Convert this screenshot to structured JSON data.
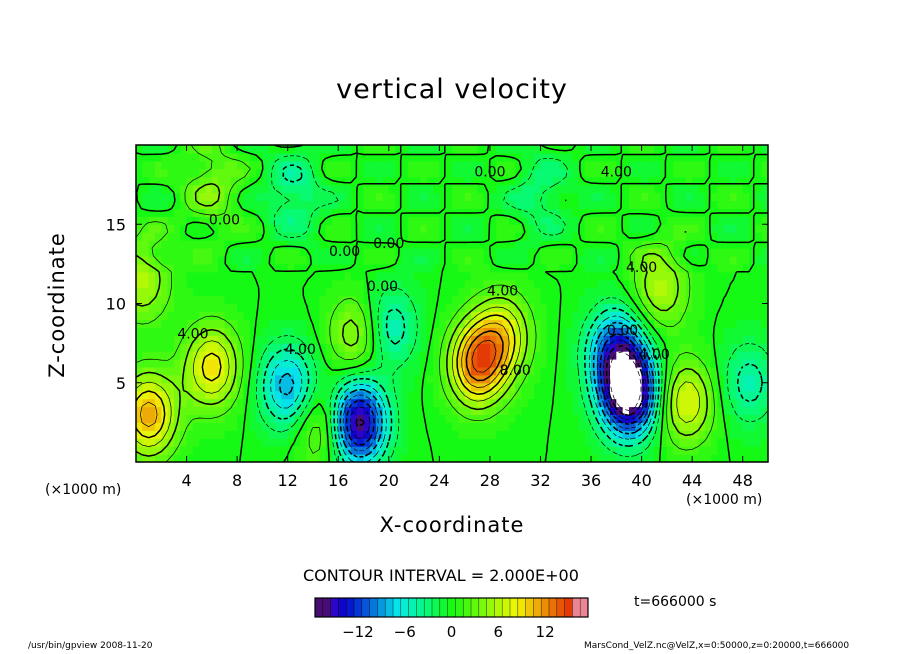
{
  "chart_data": {
    "type": "heatmap",
    "title": "vertical velocity",
    "xlabel": "X-coordinate",
    "ylabel": "Z-coordinate",
    "x_unit": "(×1000 m)",
    "xlim": [
      0,
      50
    ],
    "ylim": [
      0,
      20
    ],
    "x_ticks": [
      "4",
      "8",
      "12",
      "16",
      "20",
      "24",
      "28",
      "32",
      "36",
      "40",
      "44",
      "48"
    ],
    "y_ticks": [
      "5",
      "10",
      "15"
    ],
    "color_range": [
      -17,
      17
    ],
    "colorbar_ticks": [
      "−12",
      "−6",
      "0",
      "6",
      "12"
    ],
    "colorbar_values": [
      -12,
      -6,
      0,
      6,
      12
    ],
    "contour_interval_text": "CONTOUR INTERVAL = 2.000E+00",
    "contour_labels": [
      "4.00",
      "4.00",
      "4.00",
      "4.00",
      "8.00",
      "0.00",
      "0.00",
      "0.00",
      "0.00",
      "0.00",
      "0.00",
      "4.00",
      "4.00"
    ],
    "features": [
      {
        "x": 1.0,
        "z": 3.0,
        "value": 11
      },
      {
        "x": 6.0,
        "z": 6.0,
        "value": 9
      },
      {
        "x": 12.0,
        "z": 4.8,
        "value": -9
      },
      {
        "x": 15.0,
        "z": 2.3,
        "value": 6
      },
      {
        "x": 17.5,
        "z": 2.5,
        "value": -18
      },
      {
        "x": 17.5,
        "z": 8.0,
        "value": 6
      },
      {
        "x": 20.0,
        "z": 8.5,
        "value": -6
      },
      {
        "x": 27.0,
        "z": 6.2,
        "value": 13
      },
      {
        "x": 29.0,
        "z": 8.0,
        "value": 8
      },
      {
        "x": 38.0,
        "z": 7.0,
        "value": -12
      },
      {
        "x": 39.0,
        "z": 4.3,
        "value": -20
      },
      {
        "x": 41.5,
        "z": 11.0,
        "value": 6
      },
      {
        "x": 43.5,
        "z": 3.8,
        "value": 8
      },
      {
        "x": 48.5,
        "z": 5.0,
        "value": -5
      },
      {
        "x": 0.5,
        "z": 11.5,
        "value": 6
      },
      {
        "x": 12.5,
        "z": 17.0,
        "value": -4
      },
      {
        "x": 6.0,
        "z": 17.5,
        "value": 4
      },
      {
        "x": 32.0,
        "z": 17.0,
        "value": -3
      }
    ]
  },
  "annotations": {
    "time": "t=666000 s",
    "footer_left": "/usr/bin/gpview   2008-11-20",
    "footer_right": "MarsCond_VelZ.nc@VelZ,x=0:50000,z=0:20000,t=666000"
  }
}
